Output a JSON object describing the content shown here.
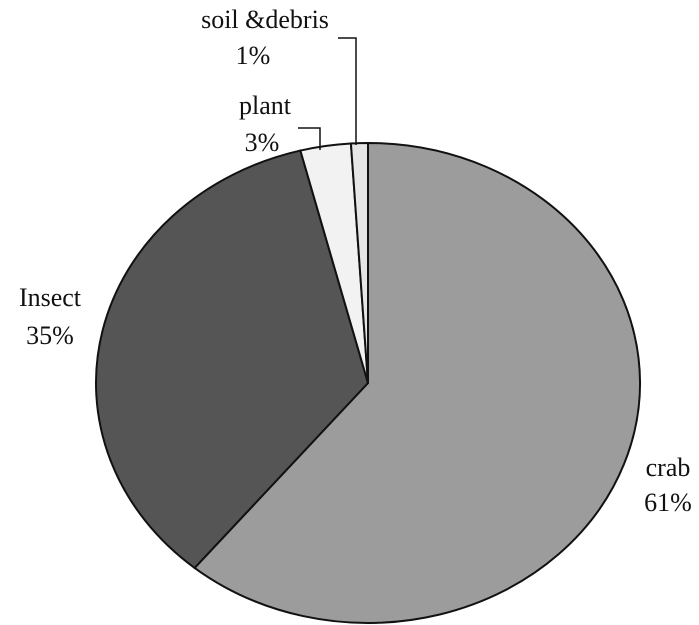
{
  "chart_data": {
    "type": "pie",
    "categories": [
      "crab",
      "Insect",
      "plant",
      "soil &debris"
    ],
    "values": [
      61,
      35,
      3,
      1
    ],
    "value_labels": [
      "61%",
      "35%",
      "3%",
      "1%"
    ],
    "colors": [
      "#9c9c9c",
      "#555555",
      "#f2f2f2",
      "#e6e6e6"
    ]
  }
}
